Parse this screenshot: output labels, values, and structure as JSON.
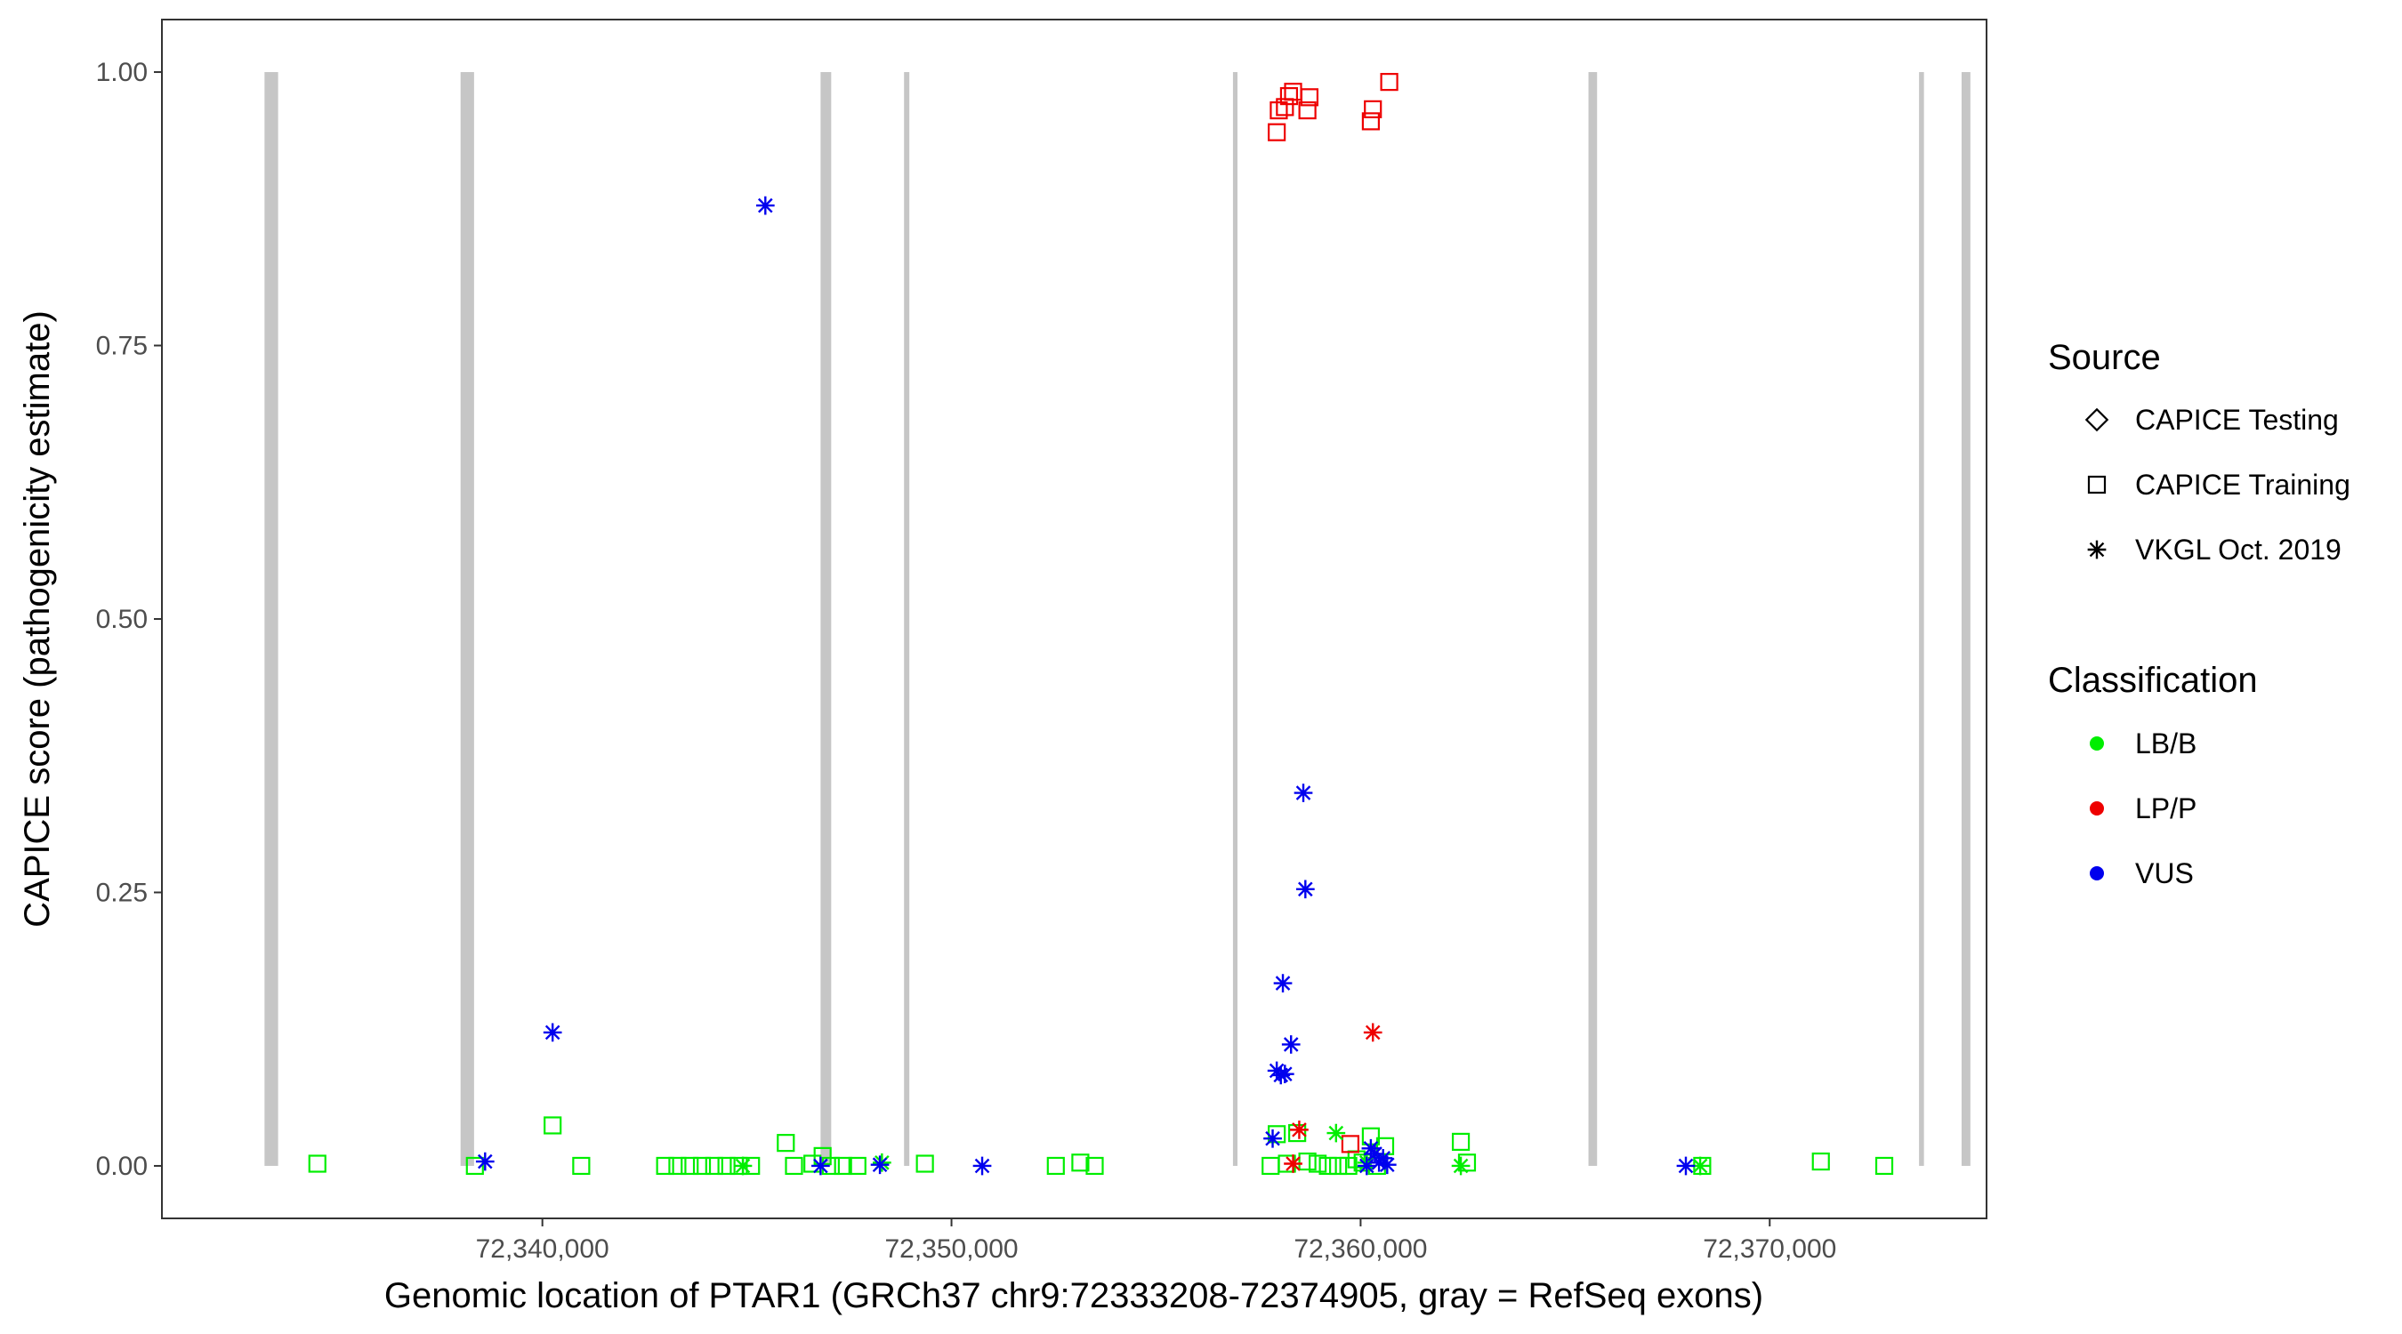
{
  "chart_data": {
    "type": "scatter",
    "title": "",
    "xlabel": "Genomic location of PTAR1 (GRCh37 chr9:72333208-72374905, gray = RefSeq exons)",
    "ylabel": "CAPICE score (pathogenicity estimate)",
    "xlim": [
      72330700,
      72375300
    ],
    "ylim": [
      -0.048,
      1.048
    ],
    "x_ticks": [
      72340000,
      72350000,
      72360000,
      72370000
    ],
    "x_tick_labels": [
      "72,340,000",
      "72,350,000",
      "72,360,000",
      "72,370,000"
    ],
    "y_ticks": [
      0,
      0.25,
      0.5,
      0.75,
      1.0
    ],
    "y_tick_labels": [
      "0.00",
      "0.25",
      "0.50",
      "0.75",
      "1.00"
    ],
    "grid": false,
    "exons": [
      {
        "start": 72333208,
        "end": 72333540
      },
      {
        "start": 72338000,
        "end": 72338330
      },
      {
        "start": 72346800,
        "end": 72347060
      },
      {
        "start": 72348840,
        "end": 72348970
      },
      {
        "start": 72356880,
        "end": 72356990
      },
      {
        "start": 72365570,
        "end": 72365780
      },
      {
        "start": 72373650,
        "end": 72373770
      },
      {
        "start": 72374690,
        "end": 72374905
      }
    ],
    "colors": {
      "LB/B": "#00ee00",
      "LP/P": "#ee0000",
      "VUS": "#0000ee",
      "exon": "#c6c6c6"
    },
    "legend": {
      "placement": "right",
      "source_title": "Source",
      "source_items": [
        {
          "label": "CAPICE Testing",
          "shape": "diamond"
        },
        {
          "label": "CAPICE Training",
          "shape": "square"
        },
        {
          "label": "VKGL Oct. 2019",
          "shape": "asterisk"
        }
      ],
      "class_title": "Classification",
      "class_items": [
        {
          "label": "LB/B",
          "color": "#00ee00"
        },
        {
          "label": "LP/P",
          "color": "#ee0000"
        },
        {
          "label": "VUS",
          "color": "#0000ee"
        }
      ]
    },
    "series": [
      {
        "name": "CAPICE Training",
        "class": "LB/B",
        "shape": "square",
        "x": [
          72334500,
          72338350,
          72340250,
          72340950,
          72343000,
          72343300,
          72343600,
          72343900,
          72344200,
          72344500,
          72344800,
          72345100,
          72345950,
          72346150,
          72346600,
          72346850,
          72347050,
          72347350,
          72347700,
          72349350,
          72352550,
          72353150,
          72353500,
          72357800,
          72357950,
          72358200,
          72358450,
          72358700,
          72358950,
          72359200,
          72359450,
          72359700,
          72359900,
          72360050,
          72360250,
          72360400,
          72360600,
          72362450,
          72362600,
          72368350,
          72371250,
          72372800
        ],
        "y": [
          0.002,
          0.0,
          0.037,
          0.0,
          0.0,
          0.0,
          0.0,
          0.0,
          0.0,
          0.0,
          0.0,
          0.0,
          0.021,
          0.0,
          0.002,
          0.009,
          0.0,
          0.0,
          0.0,
          0.002,
          0.0,
          0.003,
          0.0,
          0.0,
          0.029,
          0.002,
          0.03,
          0.004,
          0.002,
          0.0,
          0.0,
          0.0,
          0.006,
          0.003,
          0.027,
          0.0,
          0.018,
          0.022,
          0.003,
          0.0,
          0.004,
          0.0
        ]
      },
      {
        "name": "CAPICE Training",
        "class": "LP/P",
        "shape": "square",
        "x": [
          72357950,
          72358000,
          72358150,
          72358250,
          72358350,
          72358700,
          72358750,
          72359750,
          72360250,
          72360300,
          72360700
        ],
        "y": [
          0.945,
          0.965,
          0.968,
          0.978,
          0.982,
          0.965,
          0.977,
          0.02,
          0.955,
          0.966,
          0.991
        ]
      },
      {
        "name": "VKGL Oct. 2019",
        "class": "LB/B",
        "shape": "asterisk",
        "x": [
          72344900,
          72348300,
          72359400,
          72360150,
          72362450,
          72368300
        ],
        "y": [
          0.0,
          0.003,
          0.03,
          0.003,
          0.0,
          0.0
        ]
      },
      {
        "name": "VKGL Oct. 2019",
        "class": "LP/P",
        "shape": "asterisk",
        "x": [
          72358350,
          72358500,
          72360300
        ],
        "y": [
          0.002,
          0.033,
          0.122
        ]
      },
      {
        "name": "VKGL Oct. 2019",
        "class": "VUS",
        "shape": "asterisk",
        "x": [
          72338600,
          72340250,
          72345450,
          72346800,
          72348250,
          72350750,
          72357850,
          72357950,
          72358050,
          72358100,
          72358150,
          72358300,
          72358600,
          72358650,
          72360150,
          72360250,
          72360350,
          72360450,
          72360550,
          72360650,
          72367950
        ],
        "y": [
          0.004,
          0.122,
          0.878,
          0.0,
          0.001,
          0.0,
          0.025,
          0.087,
          0.083,
          0.167,
          0.084,
          0.111,
          0.341,
          0.253,
          0.0,
          0.016,
          0.011,
          0.003,
          0.007,
          0.001,
          0.0
        ]
      }
    ]
  }
}
